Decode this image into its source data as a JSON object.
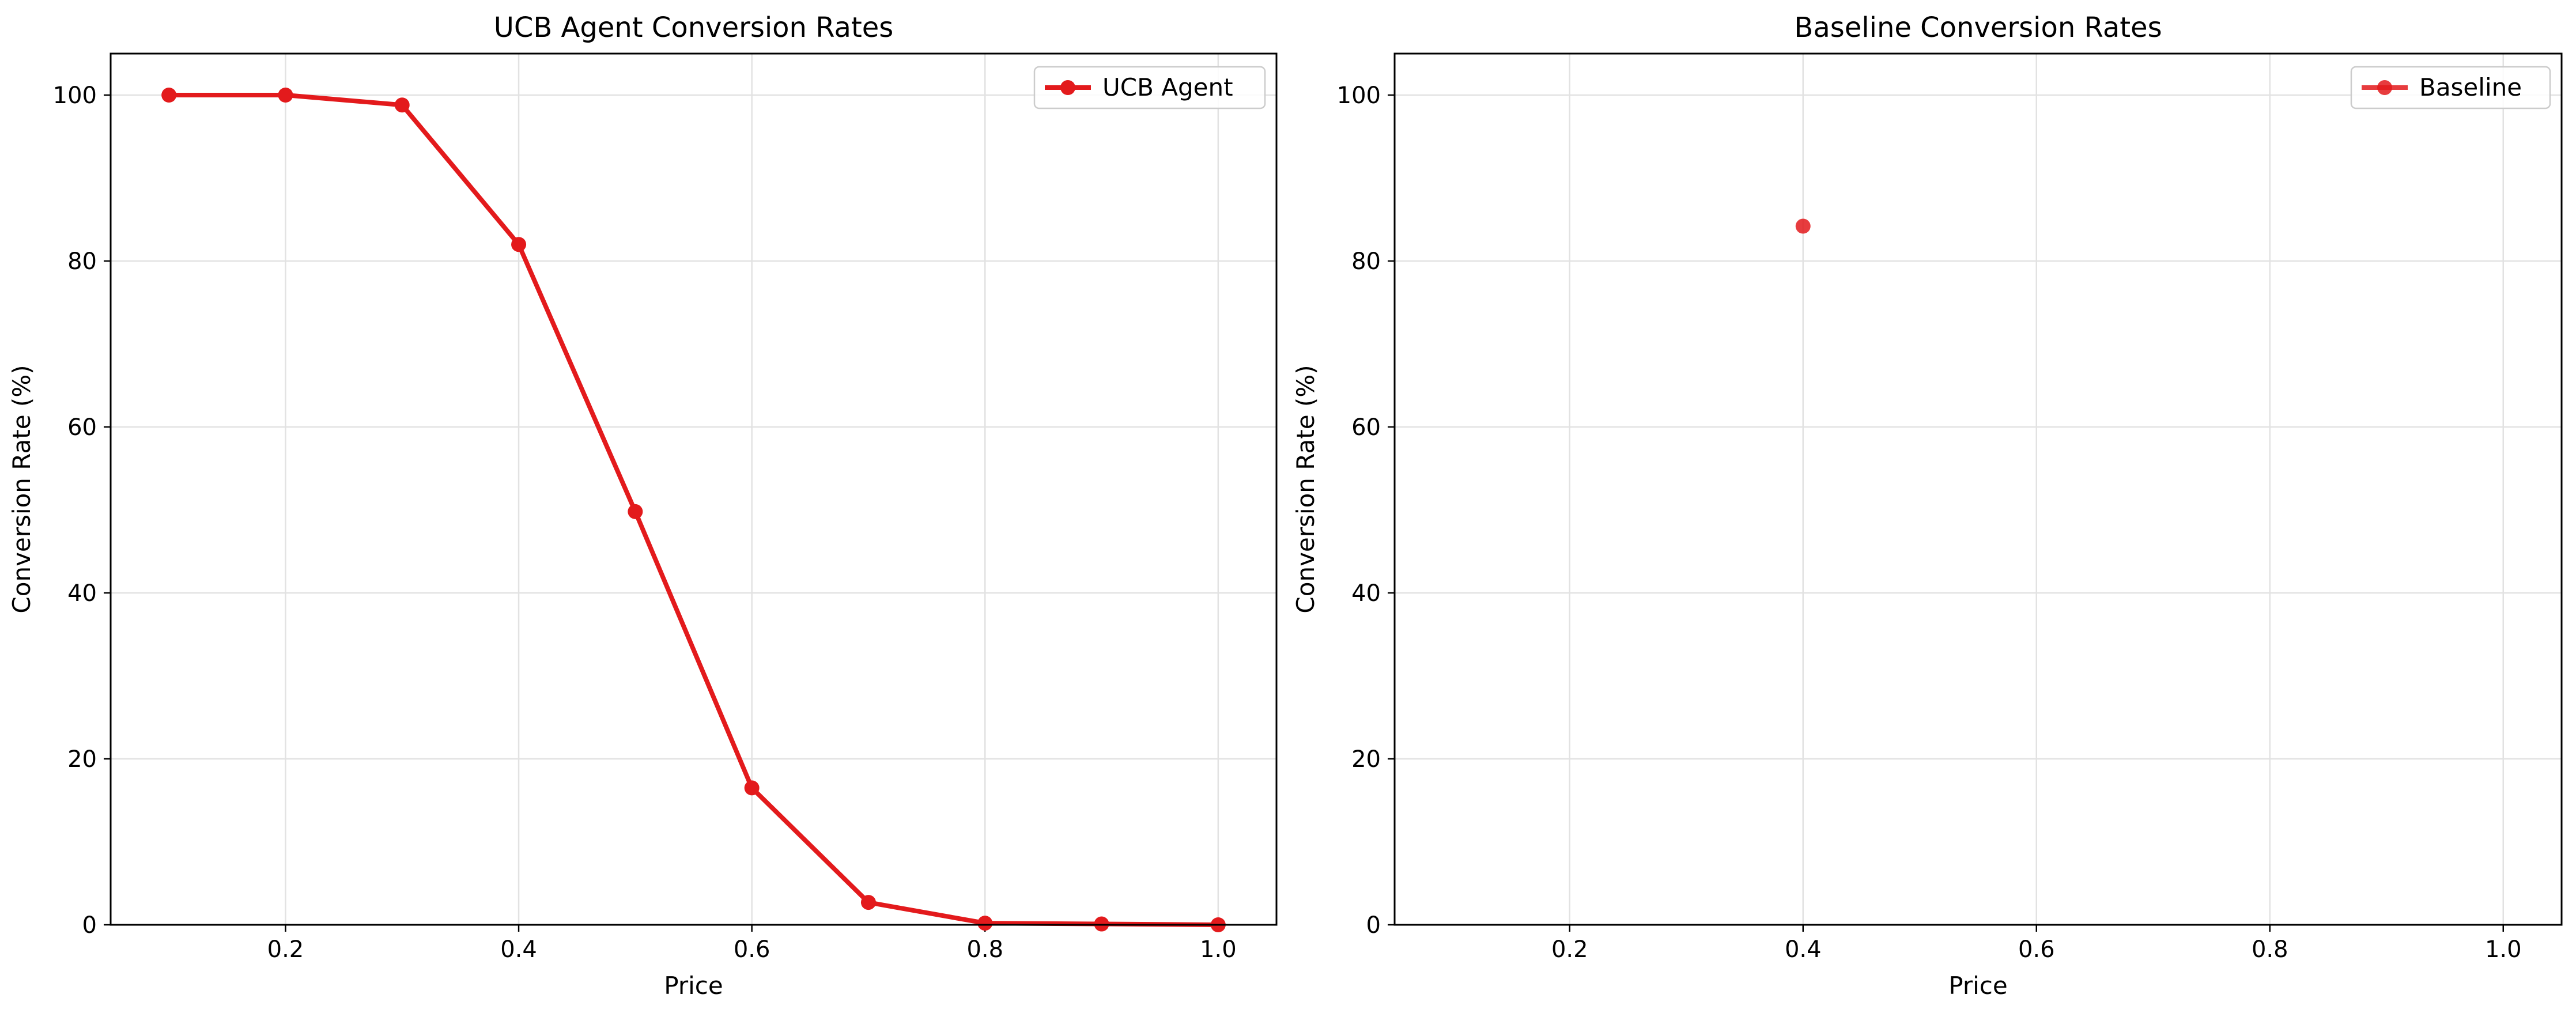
{
  "chart_data": [
    {
      "type": "line",
      "title": "UCB Agent Conversion Rates",
      "xlabel": "Price",
      "ylabel": "Conversion Rate (%)",
      "xlim": [
        0.05,
        1.05
      ],
      "ylim": [
        0,
        105
      ],
      "xticks": [
        "0.2",
        "0.4",
        "0.6",
        "0.8",
        "1.0"
      ],
      "yticks": [
        "0",
        "20",
        "40",
        "60",
        "80",
        "100"
      ],
      "grid": true,
      "legend_position": "top-right",
      "color": "#e31a1c",
      "series": [
        {
          "name": "UCB Agent",
          "x": [
            0.1,
            0.2,
            0.3,
            0.4,
            0.5,
            0.6,
            0.7,
            0.8,
            0.9,
            1.0
          ],
          "y": [
            100,
            100,
            98.8,
            82,
            49.8,
            16.5,
            2.7,
            0.2,
            0.1,
            0
          ]
        }
      ]
    },
    {
      "type": "line",
      "title": "Baseline Conversion Rates",
      "xlabel": "Price",
      "ylabel": "Conversion Rate (%)",
      "xlim": [
        0.05,
        1.05
      ],
      "ylim": [
        0,
        105
      ],
      "xticks": [
        "0.2",
        "0.4",
        "0.6",
        "0.8",
        "1.0"
      ],
      "yticks": [
        "0",
        "20",
        "40",
        "60",
        "80",
        "100"
      ],
      "grid": true,
      "legend_position": "top-right",
      "color": "#e31a1c",
      "series": [
        {
          "name": "Baseline",
          "x": [
            0.4
          ],
          "y": [
            84.2
          ]
        }
      ]
    }
  ]
}
